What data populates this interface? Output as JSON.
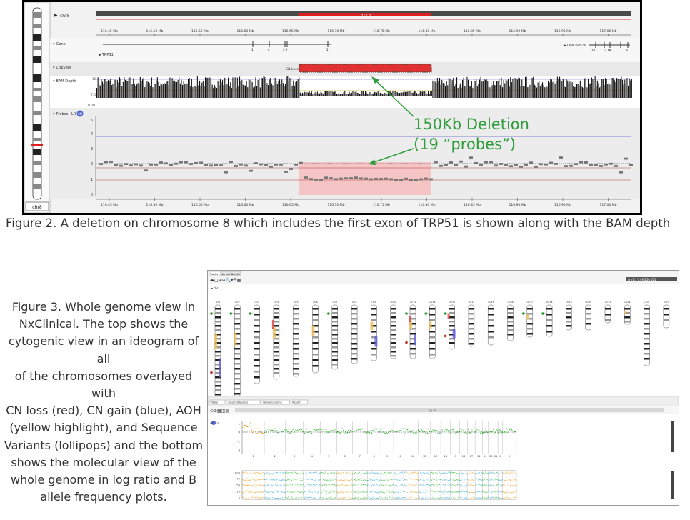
{
  "figure2": {
    "chr_label": "chr8",
    "band_label": "q23.3",
    "ideogram_label": "chr8",
    "tracks": {
      "gene": "Gene",
      "cnevent": "CNEvent",
      "bam": "BAM Depth",
      "probes": "Probes",
      "lr": "LR",
      "cn": "CN"
    },
    "gene_name_left": "TRPS1",
    "gene_name_right": "LINC00536",
    "gene_exon_numbers_left": [
      "1",
      "4",
      "3 2",
      "1"
    ],
    "gene_exon_numbers_right": [
      "24",
      "22 19",
      "9"
    ],
    "cn_event_label": "CN Loss",
    "bam_scale": [
      "18",
      "7.5",
      "0.00"
    ],
    "probe_yticks": [
      "5",
      "4",
      "3",
      "2",
      "1",
      "0"
    ],
    "axis_ticks": [
      "116.45 Mb",
      "116.50 Mb",
      "116.55 Mb",
      "116.60 Mb",
      "116.65 Mb",
      "116.70 Mb",
      "116.75 Mb",
      "116.80 Mb",
      "116.85 Mb",
      "116.90 Mb",
      "116.95 Mb",
      "117.00 Mb"
    ],
    "annotation_line1": "150Kb Deletion",
    "annotation_line2": "(19 “probes”)",
    "colors": {
      "loss": "#e03030",
      "annotation": "#2e9c3a",
      "probe": "#777777"
    }
  },
  "figure2_caption": "Figure 2. A deletion on chromosome 8 which includes the first exon of TRP51 is shown along with the BAM depth",
  "figure3_caption_lines": [
    "Figure 3. Whole genome view in",
    "NxClinical. The top shows the",
    "cytogenic view in an ideogram of all",
    "of the chromosomes overlayed with",
    "CN loss (red), CN gain (blue), AOH",
    "(yellow highlight), and Sequence",
    "Variants (lollipops) and the bottom",
    "shows the molecular view of the",
    "whole genome in log ratio and B",
    "allele frequency plots."
  ],
  "figure3": {
    "tabs": [
      "Tracks",
      "Variant Details"
    ],
    "bottom_tabs": [
      "Table",
      "Selected Events",
      "Whole Genome",
      "Report"
    ],
    "chr_dropdown": "chr1",
    "coords": "chr1:1-249,250,621",
    "chromosomes": [
      "chr1",
      "chr2",
      "chr3",
      "chr4",
      "chr5",
      "chr6",
      "chr7",
      "chr8",
      "chr9",
      "chr10",
      "chr11",
      "chr12",
      "chr13",
      "chr14",
      "chr15",
      "chr16",
      "chr17",
      "chr18",
      "chr19",
      "chr20",
      "chr21",
      "chr22",
      "chrX",
      "chrY"
    ],
    "lr_label": "LR",
    "cn_label": "CN",
    "lr_yticks": [
      "1",
      "0",
      "-1",
      "-2"
    ],
    "baf_yticks": [
      "1.00",
      ".75",
      ".50",
      ".25",
      "0"
    ],
    "chr_numbers": [
      "1",
      "2",
      "3",
      "4",
      "5",
      "6",
      "7",
      "8",
      "9",
      "10",
      "11",
      "12",
      "13",
      "14",
      "15",
      "16",
      "17",
      "18",
      "19",
      "20",
      "21",
      "22",
      "X"
    ]
  }
}
